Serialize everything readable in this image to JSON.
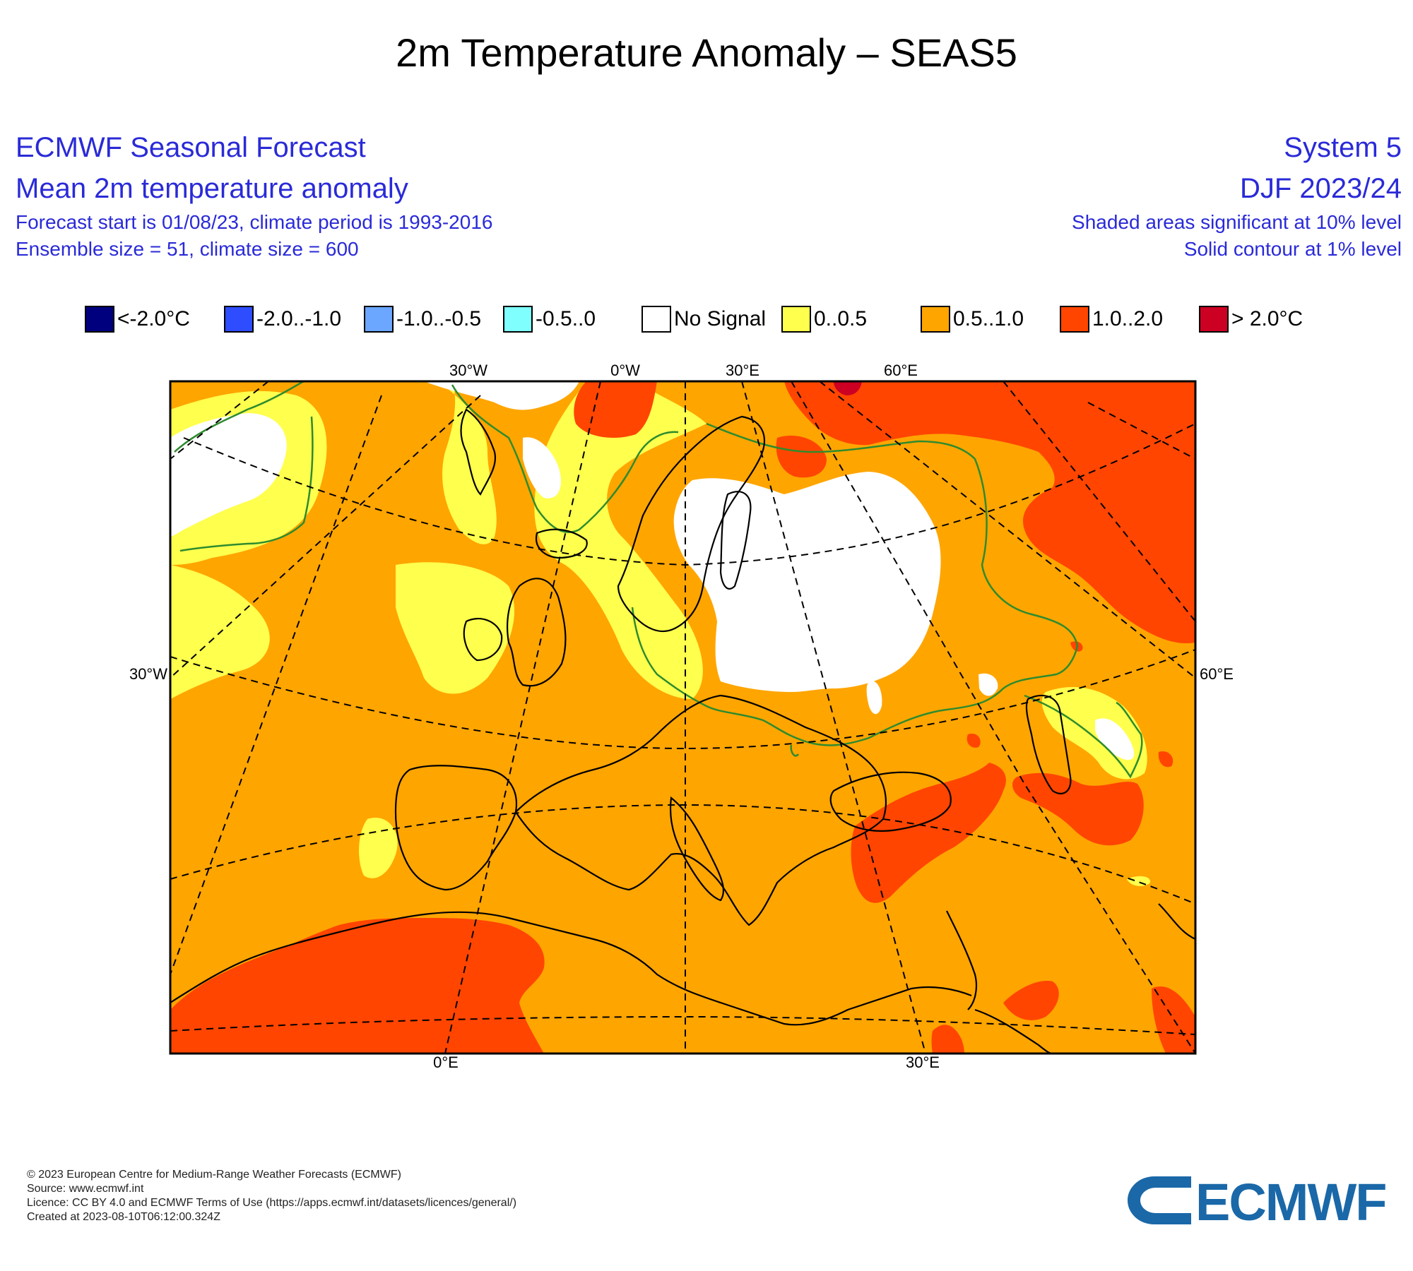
{
  "title": "2m Temperature Anomaly – SEAS5",
  "header": {
    "left": {
      "line1": "ECMWF Seasonal Forecast",
      "line2": "Mean 2m temperature anomaly",
      "line3": "Forecast start is 01/08/23, climate period is 1993-2016",
      "line4": "Ensemble size = 51, climate size = 600"
    },
    "right": {
      "line1": "System 5",
      "line2": "DJF 2023/24",
      "line3": "Shaded areas significant at 10% level",
      "line4": "Solid contour at 1% level"
    }
  },
  "legend": [
    {
      "label": "<-2.0°C",
      "color": "#00007f"
    },
    {
      "label": "-2.0..-1.0",
      "color": "#2e4dff"
    },
    {
      "label": "-1.0..-0.5",
      "color": "#6ba6ff"
    },
    {
      "label": "-0.5..0",
      "color": "#80ffff"
    },
    {
      "label": "No Signal",
      "color": "#ffffff"
    },
    {
      "label": "0..0.5",
      "color": "#ffff4d"
    },
    {
      "label": "0.5..1.0",
      "color": "#ffa500"
    },
    {
      "label": "1.0..2.0",
      "color": "#ff4500"
    },
    {
      "label": "> 2.0°C",
      "color": "#cc0022"
    }
  ],
  "map": {
    "top_labels": [
      "30°W",
      "0°W",
      "30°E",
      "60°E"
    ],
    "left_label": "30°W",
    "right_label": "60°E",
    "bottom_labels": [
      "0°E",
      "30°E"
    ],
    "colors": {
      "background": "#ffa500",
      "strong": "#ff4500",
      "weak": "#ffff4d",
      "no_signal": "#ffffff",
      "extreme": "#cc0022",
      "contour_1pct": "#2e8b2e"
    }
  },
  "footer": {
    "line1": "© 2023 European Centre for Medium-Range Weather Forecasts (ECMWF)",
    "line2": "Source: www.ecmwf.int",
    "line3": "Licence: CC BY 4.0 and ECMWF Terms of Use (https://apps.ecmwf.int/datasets/licences/general/)",
    "line4": "Created at 2023-08-10T06:12:00.324Z"
  },
  "logo": {
    "text": "ECMWF",
    "color": "#1a68a8"
  }
}
